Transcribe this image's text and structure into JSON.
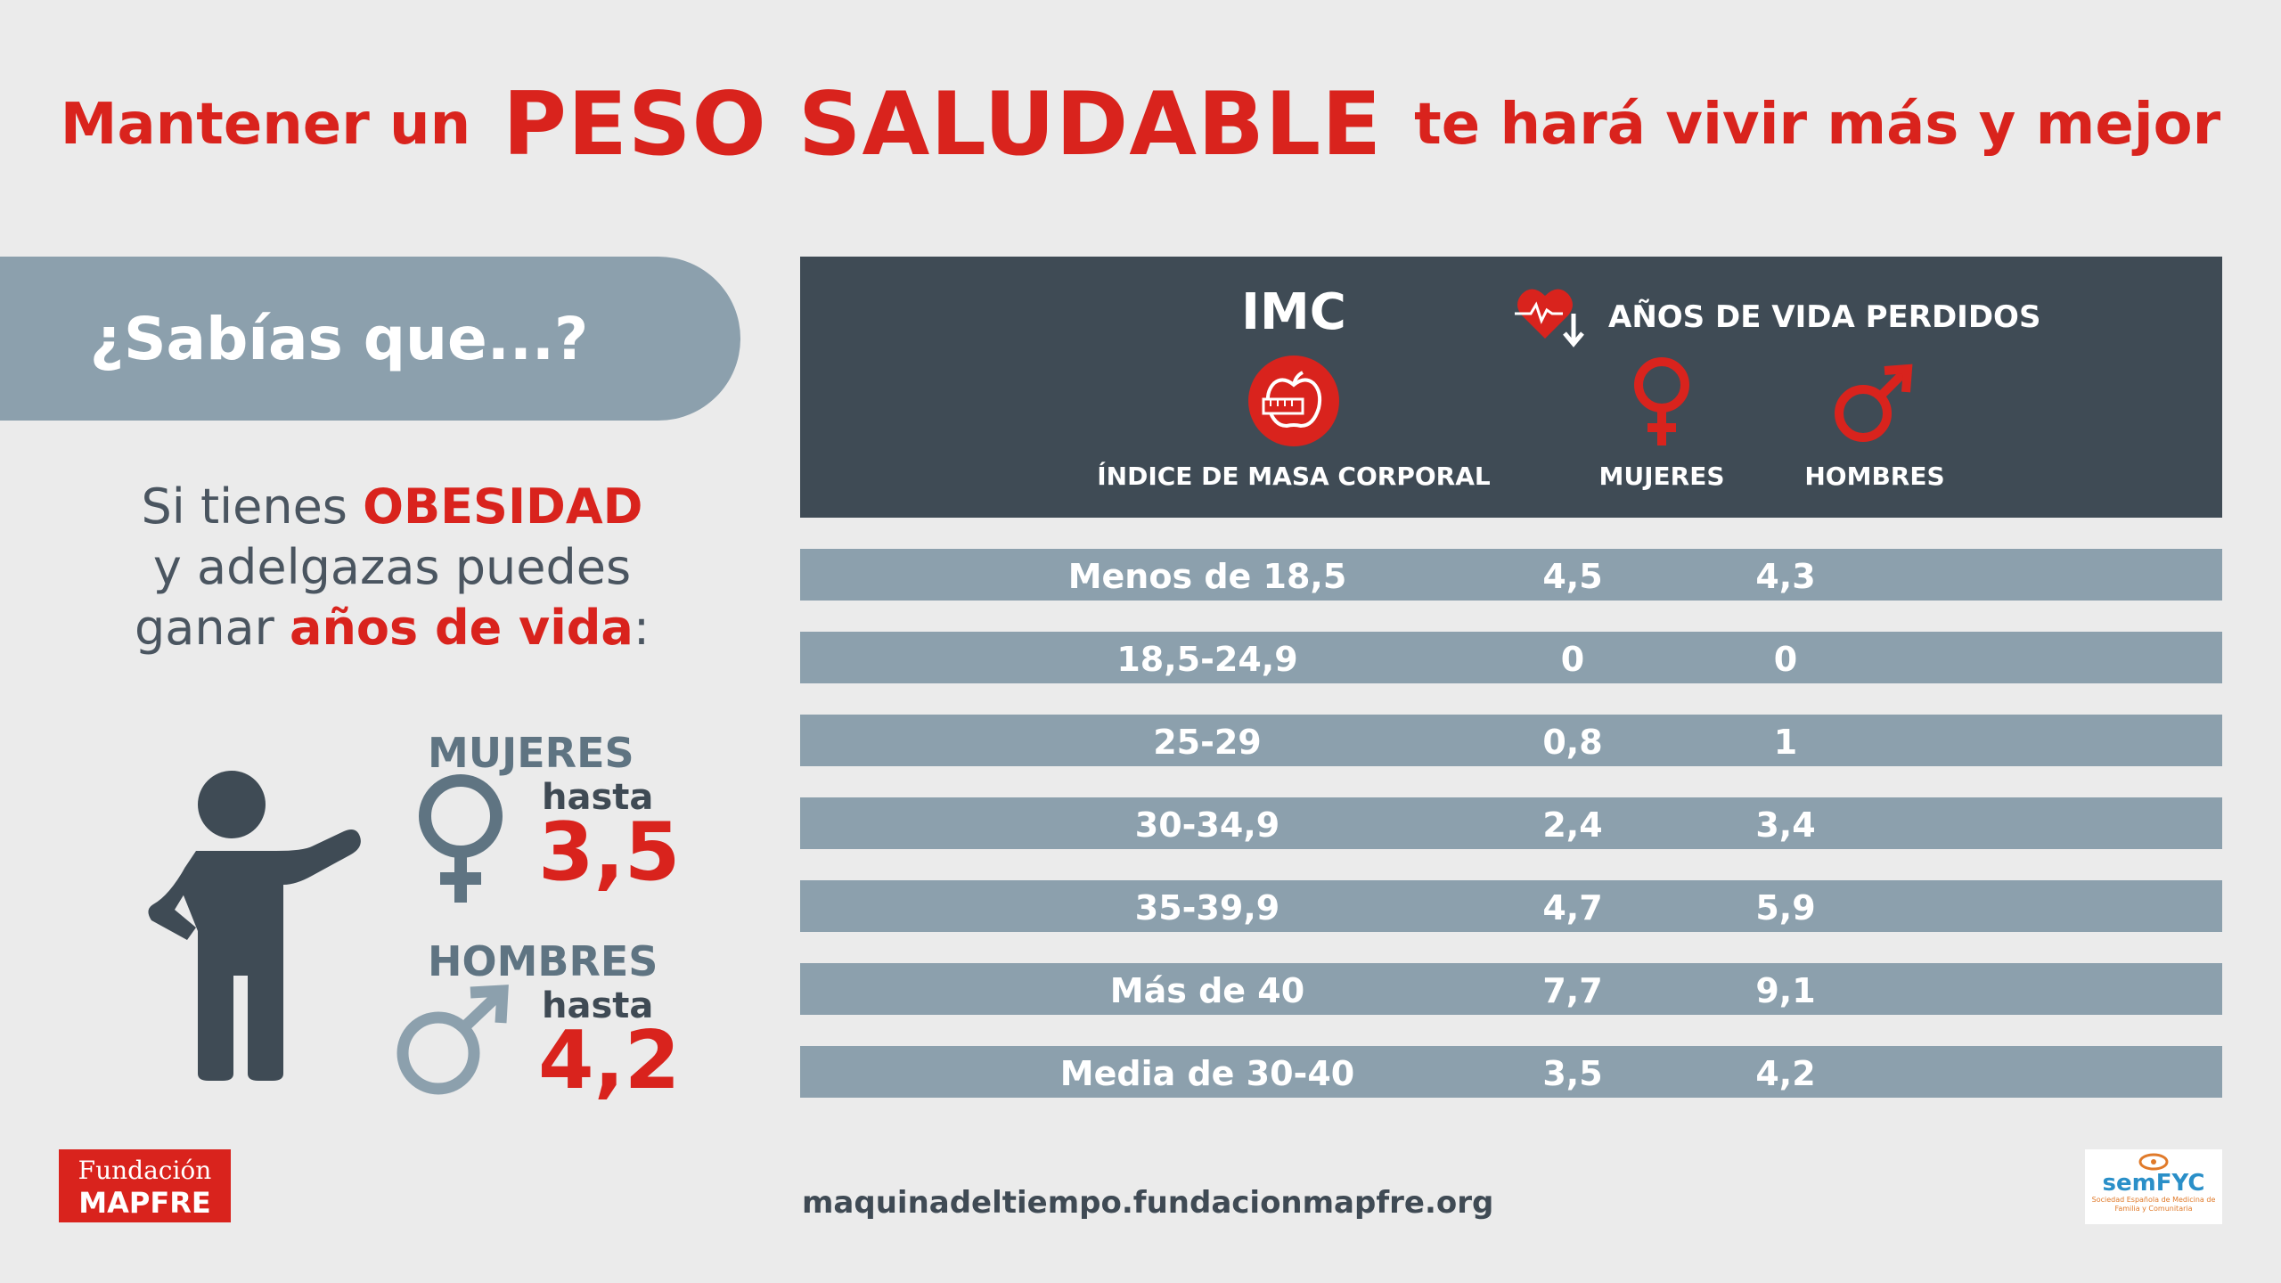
{
  "title": {
    "before": "Mantener un",
    "highlight": "PESO SALUDABLE",
    "after": "te hará vivir más y mejor"
  },
  "left": {
    "pill_text": "¿Sabías que...?",
    "intro": {
      "line1_pre": "Si tienes ",
      "line1_red": "OBESIDAD",
      "line2": "y adelgazas puedes",
      "line3_pre": "ganar ",
      "line3_red": "años de vida",
      "line3_post": ":"
    },
    "women": {
      "label": "MUJERES",
      "hasta": "hasta",
      "value": "3,5"
    },
    "men": {
      "label": "HOMBRES",
      "hasta": "hasta",
      "value": "4,2"
    }
  },
  "table": {
    "header": {
      "imc": "IMC",
      "imc_sub": "ÍNDICE DE MASA CORPORAL",
      "years_lost": "AÑOS DE VIDA PERDIDOS",
      "women": "MUJERES",
      "men": "HOMBRES"
    },
    "rows": [
      {
        "imc": "Menos de 18,5",
        "women": "4,5",
        "men": "4,3"
      },
      {
        "imc": "18,5-24,9",
        "women": "0",
        "men": "0"
      },
      {
        "imc": "25-29",
        "women": "0,8",
        "men": "1"
      },
      {
        "imc": "30-34,9",
        "women": "2,4",
        "men": "3,4"
      },
      {
        "imc": "35-39,9",
        "women": "4,7",
        "men": "5,9"
      },
      {
        "imc": "Más de 40",
        "women": "7,7",
        "men": "9,1"
      },
      {
        "imc": "Media de 30-40",
        "women": "3,5",
        "men": "4,2"
      }
    ]
  },
  "footer": {
    "url": "maquinadeltiempo.fundacionmapfre.org",
    "logo_left_line1": "Fundación",
    "logo_left_line2": "MAPFRE",
    "logo_right_name": "semFYC",
    "logo_right_sub": "Sociedad Española de Medicina de Familia y Comunitaria"
  },
  "colors": {
    "accent_red": "#d9231d",
    "dark_slate": "#3f4b55",
    "row_blue_gray": "#8ca0ad",
    "background": "#ebebeb"
  },
  "icons": [
    "heart-rate-down-icon",
    "apple-measure-icon",
    "female-symbol-icon",
    "male-symbol-icon",
    "person-icon"
  ]
}
